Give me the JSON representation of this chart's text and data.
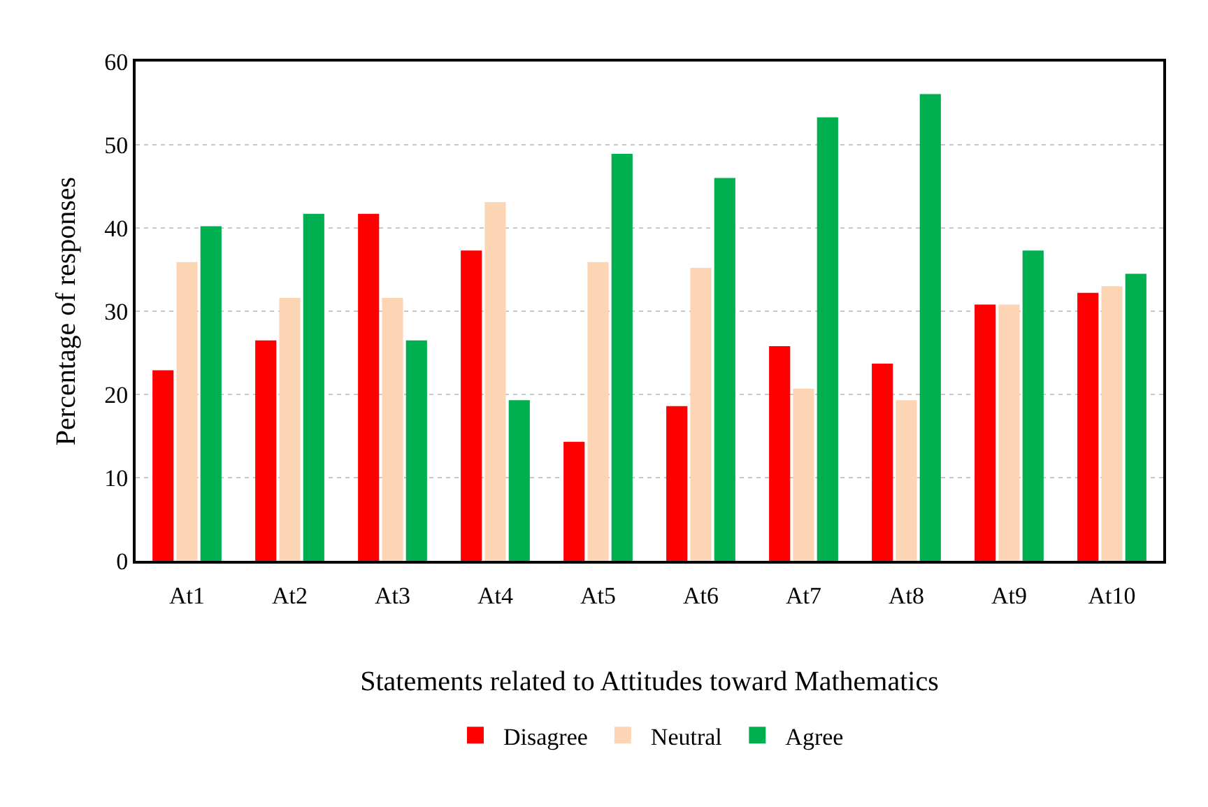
{
  "chart_data": {
    "type": "bar",
    "xlabel": "Statements related to Attitudes toward Mathematics",
    "ylabel": "Percentage of responses",
    "categories": [
      "At1",
      "At2",
      "At3",
      "At4",
      "At5",
      "At6",
      "At7",
      "At8",
      "At9",
      "At10"
    ],
    "series": [
      {
        "name": "Disagree",
        "color": "#ff0000",
        "values": [
          22.9,
          26.5,
          41.7,
          37.3,
          14.3,
          18.6,
          25.8,
          23.7,
          30.8,
          32.2
        ]
      },
      {
        "name": "Neutral",
        "color": "#fcd5b5",
        "values": [
          35.9,
          31.6,
          31.6,
          43.1,
          35.9,
          35.2,
          20.7,
          19.3,
          30.8,
          33.0
        ]
      },
      {
        "name": "Agree",
        "color": "#00b050",
        "values": [
          40.2,
          41.7,
          26.5,
          19.3,
          48.9,
          46.0,
          53.3,
          56.1,
          37.3,
          34.5
        ]
      }
    ],
    "ylim": [
      0,
      60
    ],
    "yticks": [
      0,
      10,
      20,
      30,
      40,
      50,
      60
    ],
    "grid": "y",
    "legend": "bottom"
  }
}
